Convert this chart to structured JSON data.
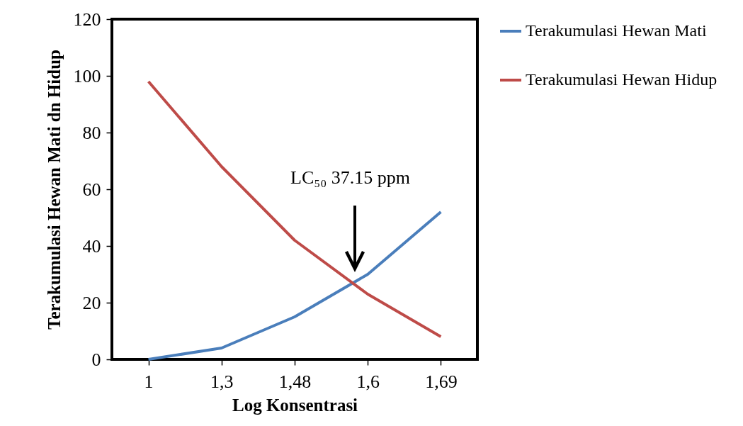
{
  "chart_data": {
    "type": "line",
    "xlabel": "Log Konsentrasi",
    "ylabel": "Terakumulasi Hewan Mati dn Hidup",
    "categories": [
      "1",
      "1,3",
      "1,48",
      "1,6",
      "1,69"
    ],
    "series": [
      {
        "name": "Terakumulasi Hewan Mati",
        "color": "#4a7ebb",
        "values": [
          0,
          4,
          15,
          30,
          52
        ]
      },
      {
        "name": "Terakumulasi Hewan Hidup",
        "color": "#be4b48",
        "values": [
          98,
          68,
          42,
          23,
          8
        ]
      }
    ],
    "ylim": [
      0,
      120
    ],
    "yticks": [
      0,
      20,
      40,
      60,
      80,
      100,
      120
    ],
    "annotations": [
      "LC₅₀  37.15 ppm"
    ],
    "grid": false,
    "legend": "right",
    "marker": "none",
    "line_style": "solid"
  }
}
